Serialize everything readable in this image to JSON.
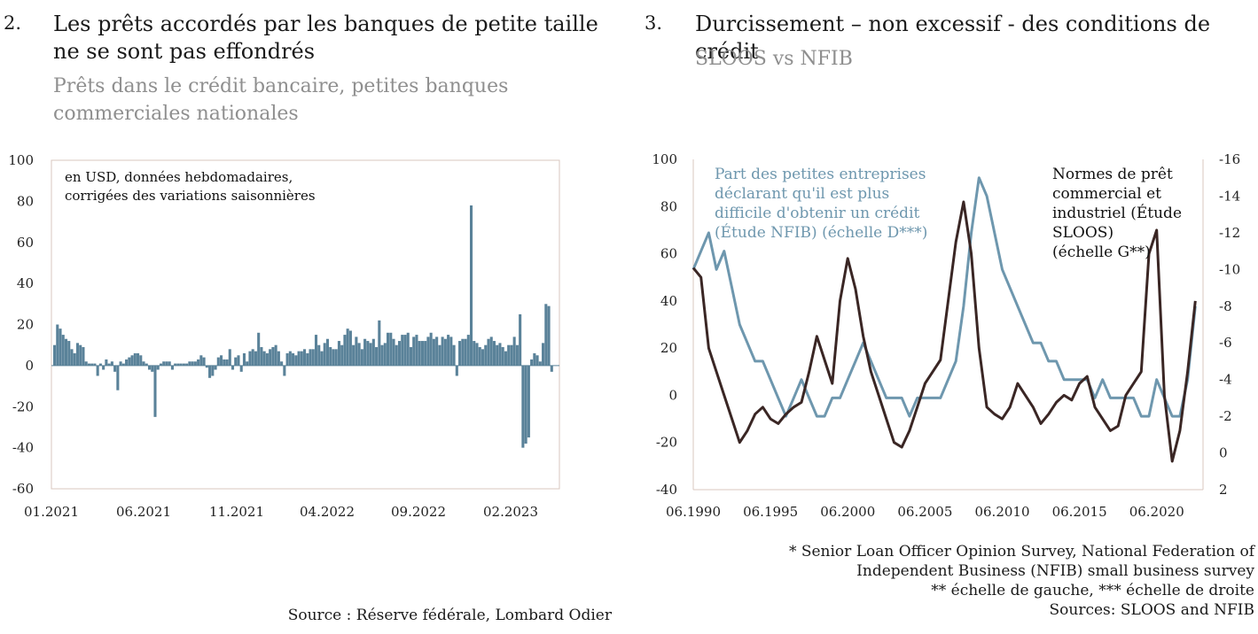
{
  "left": {
    "number": "2.",
    "title_line1": "Les prêts accordés par les banques de petite taille",
    "title_line2": "ne se sont pas effondrés",
    "subtitle_line1": "Prêts dans le crédit bancaire, petites banques",
    "subtitle_line2": "commerciales nationales",
    "note_line1": "en USD, données hebdomadaires,",
    "note_line2": "corrigées des variations saisonnières",
    "source": "Source : Réserve fédérale, Lombard Odier"
  },
  "right": {
    "number": "3.",
    "title": "Durcissement – non excessif - des conditions de crédit",
    "subtitle": "SLOOS vs NFIB",
    "nfib_label": [
      "Part des petites entreprises",
      "déclarant qu'il est plus",
      "difficile d'obtenir un crédit",
      "(Étude NFIB) (échelle D***)"
    ],
    "sloos_label": [
      "Normes de prêt",
      "commercial et",
      "industriel (Étude",
      "SLOOS)",
      "(échelle G**)"
    ],
    "footnote1": "* Senior Loan Officer Opinion Survey, National Federation of",
    "footnote2": "Independent Business (NFIB) small business survey",
    "footnote3": "** échelle de gauche, *** échelle de droite",
    "footnote4": "Sources: SLOOS and NFIB"
  },
  "colors": {
    "bar": "#5a8299",
    "nfib": "#6e97ae",
    "sloos": "#3a2624",
    "frame": "#d9c7bf"
  },
  "chart_data": [
    {
      "type": "bar",
      "ylim": [
        -60,
        100
      ],
      "yticks": [
        100,
        80,
        60,
        40,
        20,
        0,
        -20,
        -40,
        -60
      ],
      "xtick_labels": [
        "01.2021",
        "06.2021",
        "11.2021",
        "04.2022",
        "09.2022",
        "02.2023"
      ],
      "values": [
        10,
        20,
        18,
        15,
        13,
        12,
        8,
        6,
        11,
        10,
        9,
        2,
        1,
        1,
        1,
        -5,
        1,
        -2,
        3,
        1,
        2,
        -3,
        -12,
        2,
        1,
        3,
        4,
        5,
        6,
        6,
        5,
        2,
        1,
        -2,
        -3,
        -25,
        -2,
        1,
        2,
        2,
        2,
        -2,
        1,
        1,
        1,
        1,
        1,
        2,
        2,
        2,
        3,
        5,
        4,
        -1,
        -6,
        -5,
        -2,
        4,
        5,
        3,
        3,
        8,
        -2,
        4,
        5,
        -3,
        6,
        2,
        7,
        8,
        7,
        16,
        9,
        7,
        6,
        8,
        9,
        10,
        7,
        2,
        -5,
        6,
        7,
        6,
        5,
        7,
        7,
        8,
        6,
        8,
        8,
        15,
        10,
        7,
        11,
        13,
        9,
        8,
        8,
        12,
        10,
        15,
        18,
        17,
        10,
        14,
        11,
        8,
        13,
        12,
        11,
        13,
        9,
        22,
        10,
        11,
        16,
        16,
        13,
        10,
        12,
        15,
        15,
        16,
        9,
        14,
        15,
        12,
        12,
        12,
        14,
        16,
        13,
        14,
        10,
        14,
        13,
        15,
        14,
        10,
        -5,
        12,
        13,
        13,
        15,
        78,
        12,
        11,
        9,
        8,
        10,
        13,
        14,
        12,
        10,
        11,
        9,
        7,
        10,
        10,
        14,
        10,
        25,
        -40,
        -38,
        -35,
        3,
        6,
        5,
        2,
        11,
        30,
        29,
        -3
      ]
    },
    {
      "type": "line",
      "xtick_labels": [
        "06.1990",
        "06.1995",
        "06.2000",
        "06.2005",
        "06.2010",
        "06.2015",
        "06.2020"
      ],
      "ylim_left": [
        -40,
        100
      ],
      "yticks_left": [
        100,
        80,
        60,
        40,
        20,
        0,
        -20,
        -40
      ],
      "ylim_right": [
        2,
        -16
      ],
      "yticks_right": [
        -16,
        -14,
        -12,
        -10,
        -8,
        -6,
        -4,
        -2,
        0,
        2
      ],
      "series": [
        {
          "name": "Part des petites entreprises déclarant qu'il est plus difficile d'obtenir un crédit (Étude NFIB) (échelle D***)",
          "axis": "right",
          "x": [
            1990.5,
            1991,
            1991.5,
            1992,
            1992.5,
            1993,
            1993.5,
            1994,
            1994.5,
            1995,
            1995.5,
            1996,
            1996.5,
            1997,
            1997.5,
            1998,
            1998.5,
            1999,
            1999.5,
            2000,
            2000.5,
            2001,
            2001.5,
            2002,
            2002.5,
            2003,
            2003.5,
            2004,
            2004.5,
            2005,
            2005.5,
            2006,
            2006.5,
            2007,
            2007.5,
            2008,
            2008.5,
            2009,
            2009.5,
            2010,
            2010.5,
            2011,
            2011.5,
            2012,
            2012.5,
            2013,
            2013.5,
            2014,
            2014.5,
            2015,
            2015.5,
            2016,
            2016.5,
            2017,
            2017.5,
            2018,
            2018.5,
            2019,
            2019.5,
            2020,
            2020.5,
            2021,
            2021.5,
            2022,
            2022.5,
            2023
          ],
          "values": [
            -10,
            -11,
            -12,
            -10,
            -11,
            -9,
            -7,
            -6,
            -5,
            -5,
            -4,
            -3,
            -2,
            -3,
            -4,
            -3,
            -2,
            -2,
            -3,
            -3,
            -4,
            -5,
            -6,
            -5,
            -4,
            -3,
            -3,
            -3,
            -2,
            -3,
            -3,
            -3,
            -3,
            -4,
            -5,
            -8,
            -12,
            -15,
            -14,
            -12,
            -10,
            -9,
            -8,
            -7,
            -6,
            -6,
            -5,
            -5,
            -4,
            -4,
            -4,
            -4,
            -3,
            -4,
            -3,
            -3,
            -3,
            -3,
            -2,
            -2,
            -4,
            -3,
            -2,
            -2,
            -4,
            -8
          ]
        },
        {
          "name": "Normes de prêt commercial et industriel (Étude SLOOS) (échelle G**)",
          "axis": "left",
          "x": [
            1990.5,
            1991,
            1991.5,
            1992,
            1992.5,
            1993,
            1993.5,
            1994,
            1994.5,
            1995,
            1995.5,
            1996,
            1996.5,
            1997,
            1997.5,
            1998,
            1998.5,
            1999,
            1999.5,
            2000,
            2000.5,
            2001,
            2001.5,
            2002,
            2002.5,
            2003,
            2003.5,
            2004,
            2004.5,
            2005,
            2005.5,
            2006,
            2006.5,
            2007,
            2007.5,
            2008,
            2008.5,
            2009,
            2009.5,
            2010,
            2010.5,
            2011,
            2011.5,
            2012,
            2012.5,
            2013,
            2013.5,
            2014,
            2014.5,
            2015,
            2015.5,
            2016,
            2016.5,
            2017,
            2017.5,
            2018,
            2018.5,
            2019,
            2019.5,
            2020,
            2020.5,
            2021,
            2021.5,
            2022,
            2022.5,
            2023
          ],
          "values": [
            54,
            50,
            20,
            10,
            0,
            -10,
            -20,
            -15,
            -8,
            -5,
            -10,
            -12,
            -8,
            -5,
            -3,
            10,
            25,
            15,
            5,
            40,
            58,
            45,
            25,
            10,
            0,
            -10,
            -20,
            -22,
            -15,
            -5,
            5,
            10,
            15,
            40,
            65,
            82,
            60,
            20,
            -5,
            -8,
            -10,
            -5,
            5,
            0,
            -5,
            -12,
            -8,
            -3,
            0,
            -2,
            5,
            8,
            -5,
            -10,
            -15,
            -13,
            0,
            5,
            10,
            60,
            70,
            0,
            -28,
            -15,
            10,
            40
          ]
        }
      ]
    }
  ]
}
